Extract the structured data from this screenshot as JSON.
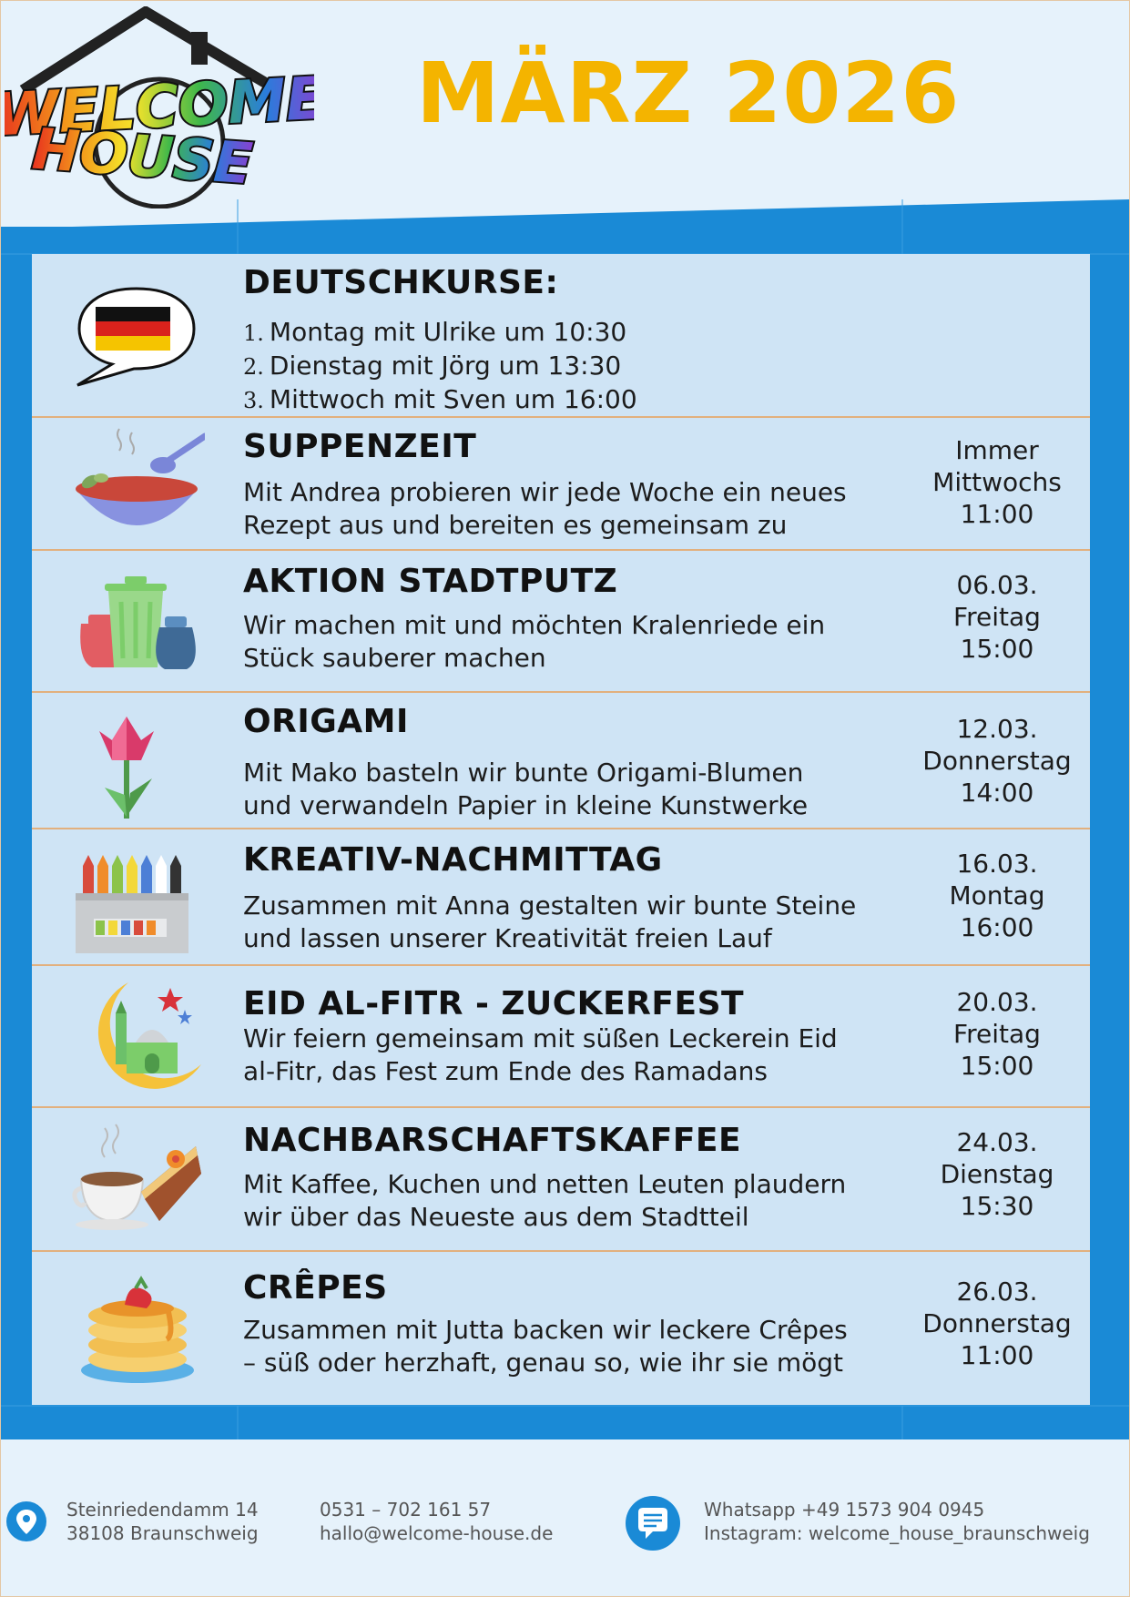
{
  "header": {
    "title": "MÄRZ 2026",
    "logo_text": [
      "WELCOME",
      "HOUSE"
    ]
  },
  "courses": {
    "title": "DEUTSCHKURSE:",
    "items": [
      {
        "num": "1.",
        "text": "Montag mit Ulrike um 10:30"
      },
      {
        "num": "2.",
        "text": "Dienstag mit Jörg um 13:30"
      },
      {
        "num": "3.",
        "text": "Mittwoch mit Sven um 16:00"
      }
    ]
  },
  "events": [
    {
      "title": "SUPPENZEIT",
      "desc": [
        "Mit Andrea probieren wir jede Woche ein neues",
        "Rezept aus und bereiten es gemeinsam zu"
      ],
      "when": [
        "Immer",
        "Mittwochs",
        "11:00"
      ],
      "icon": "soup-bowl-icon"
    },
    {
      "title": "AKTION STADTPUTZ",
      "desc": [
        "Wir machen mit und möchten Kralenriede ein",
        "Stück sauberer machen"
      ],
      "when": [
        "06.03.",
        "Freitag",
        "15:00"
      ],
      "icon": "trash-bin-icon"
    },
    {
      "title": "ORIGAMI",
      "desc": [
        "Mit Mako basteln wir bunte Origami-Blumen",
        "und verwandeln Papier in kleine Kunstwerke"
      ],
      "when": [
        "12.03.",
        "Donnerstag",
        "14:00"
      ],
      "icon": "origami-tulip-icon"
    },
    {
      "title": "KREATIV-NACHMITTAG",
      "desc": [
        "Zusammen mit Anna gestalten wir bunte Steine",
        "und lassen unserer Kreativität freien Lauf"
      ],
      "when": [
        "16.03.",
        "Montag",
        "16:00"
      ],
      "icon": "crayons-icon"
    },
    {
      "title": "EID AL-FITR - ZUCKERFEST",
      "desc": [
        "Wir feiern gemeinsam mit süßen Leckerein Eid",
        "al-Fitr, das Fest zum Ende des Ramadans"
      ],
      "when": [
        "20.03.",
        "Freitag",
        "15:00"
      ],
      "icon": "crescent-mosque-icon"
    },
    {
      "title": "NACHBARSCHAFTSKAFFEE",
      "desc": [
        "Mit Kaffee, Kuchen und netten Leuten plaudern",
        "wir über das Neueste aus dem Stadtteil"
      ],
      "when": [
        "24.03.",
        "Dienstag",
        "15:30"
      ],
      "icon": "coffee-cake-icon"
    },
    {
      "title": "CRÊPES",
      "desc": [
        "Zusammen mit Jutta backen wir leckere Crêpes",
        "– süß oder herzhaft, genau so, wie ihr sie mögt"
      ],
      "when": [
        "26.03.",
        "Donnerstag",
        "11:00"
      ],
      "icon": "pancakes-icon"
    }
  ],
  "footer": {
    "address": [
      "Steinriedendamm 14",
      "38108 Braunschweig"
    ],
    "contact": [
      "0531 – 702 161 57",
      "hallo@welcome-house.de"
    ],
    "social": [
      "Whatsapp +49 1573 904 0945",
      "Instagram: welcome_house_braunschweig"
    ]
  },
  "colors": {
    "title": "#f4b400",
    "blue": "#1a8ad6",
    "row_bg": "#cfe4f5",
    "divider": "#e2b07e"
  }
}
